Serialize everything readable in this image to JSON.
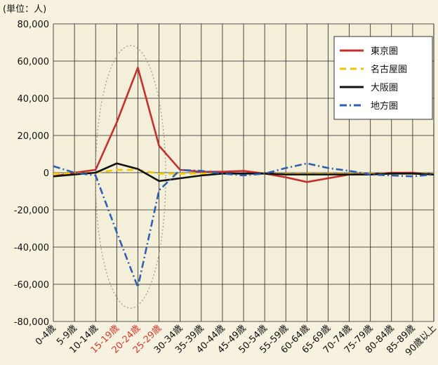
{
  "chart_data": {
    "type": "line",
    "unit_label": "(単位：人)",
    "title": "",
    "xlabel": "",
    "ylabel": "",
    "ylim": [
      -80000,
      80000
    ],
    "yticks": [
      80000,
      60000,
      40000,
      20000,
      0,
      -20000,
      -40000,
      -60000,
      -80000
    ],
    "ytick_labels": [
      "80,000",
      "60,000",
      "40,000",
      "20,000",
      "0",
      "-20,000",
      "-40,000",
      "-60,000",
      "-80,000"
    ],
    "grid": true,
    "legend_position": "top-right",
    "categories": [
      "0-4歳",
      "5-9歳",
      "10-14歳",
      "15-19歳",
      "20-24歳",
      "25-29歳",
      "30-34歳",
      "35-39歳",
      "40-44歳",
      "45-49歳",
      "50-54歳",
      "55-59歳",
      "60-64歳",
      "65-69歳",
      "70-74歳",
      "75-79歳",
      "80-84歳",
      "85-89歳",
      "90歳以上"
    ],
    "highlight_categories": [
      "15-19歳",
      "20-24歳",
      "25-29歳"
    ],
    "highlight_color": "#d8392b",
    "series": [
      {
        "name": "東京圏",
        "color": "#c62f2f",
        "dash": "solid",
        "values": [
          -2000,
          0,
          1500,
          27000,
          56500,
          14500,
          1500,
          500,
          500,
          1000,
          -500,
          -2500,
          -5000,
          -3000,
          -1000,
          -1000,
          0,
          0,
          -1000
        ]
      },
      {
        "name": "名古屋圏",
        "color": "#f2c500",
        "dash": "dash",
        "values": [
          -500,
          -500,
          0,
          1500,
          1500,
          -500,
          -500,
          -500,
          -500,
          -500,
          -500,
          -500,
          -500,
          -500,
          -500,
          -500,
          -500,
          -500,
          -500
        ]
      },
      {
        "name": "大阪圏",
        "color": "#111111",
        "dash": "solid",
        "values": [
          -2000,
          -1000,
          0,
          5000,
          2000,
          -4500,
          -3000,
          -1500,
          -500,
          -500,
          -500,
          -1000,
          -1000,
          -1000,
          -1000,
          -1000,
          -500,
          -500,
          -1000
        ]
      },
      {
        "name": "地方圏",
        "color": "#2f5fb0",
        "dash": "dashdot",
        "values": [
          3500,
          0,
          -1500,
          -32000,
          -61500,
          -9500,
          1500,
          1000,
          -500,
          -1500,
          -500,
          2500,
          5000,
          2500,
          1000,
          -1000,
          -1500,
          -2000,
          -1000
        ]
      }
    ]
  }
}
